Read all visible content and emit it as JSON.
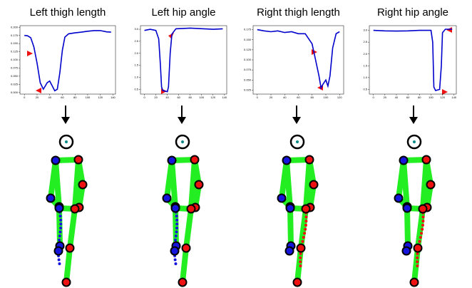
{
  "chart_data": [
    {
      "type": "line",
      "title": "Left thigh length",
      "x": [
        0,
        5,
        10,
        15,
        20,
        25,
        30,
        33,
        36,
        40,
        44,
        48,
        52,
        56,
        60,
        64,
        70,
        80,
        90,
        100,
        110,
        120,
        130,
        137
      ],
      "series": [
        {
          "name": "Left thigh length",
          "color": "#0000cc",
          "values": [
            0.175,
            0.174,
            0.168,
            0.14,
            0.09,
            0.03,
            0.01,
            0.02,
            0.03,
            0.035,
            0.02,
            0.005,
            0.01,
            0.06,
            0.13,
            0.17,
            0.18,
            0.183,
            0.185,
            0.188,
            0.19,
            0.19,
            0.186,
            0.185
          ]
        }
      ],
      "xlim": [
        -7,
        144
      ],
      "xticks": [
        0,
        20,
        40,
        60,
        80,
        100,
        120,
        140
      ],
      "ylim": [
        -0.005,
        0.205
      ],
      "yticks": [
        {
          "value": 0,
          "label": "0.000"
        },
        0.025,
        {
          "value": 0.05,
          "label": "0.050"
        },
        0.075,
        {
          "value": 0.1,
          "label": "0.100"
        },
        0.125,
        {
          "value": 0.15,
          "label": "0.150"
        },
        0.175,
        {
          "value": 0.2,
          "label": "0.200"
        }
      ]
    },
    {
      "type": "line",
      "title": "Left hip angle",
      "x": [
        0,
        10,
        20,
        25,
        28,
        30,
        32,
        40,
        42,
        45,
        48,
        55,
        80,
        120,
        137
      ],
      "series": [
        {
          "name": "Left hip angle",
          "color": "#0000cc",
          "values": [
            2.95,
            3.0,
            2.95,
            2.6,
            1.5,
            0.6,
            0.45,
            0.4,
            0.6,
            2.0,
            2.8,
            3.02,
            3.05,
            3.0,
            3.02
          ]
        }
      ],
      "xlim": [
        -7,
        144
      ],
      "xticks": [
        0,
        20,
        40,
        60,
        80,
        100,
        120,
        140
      ],
      "ylim": [
        0.3,
        3.15
      ],
      "yticks": [
        {
          "value": 0.5,
          "label": "0.5"
        },
        {
          "value": 1,
          "label": "1.0"
        },
        1.5,
        {
          "value": 2,
          "label": "2.0"
        },
        2.5,
        {
          "value": 3,
          "label": "3.0"
        }
      ]
    },
    {
      "type": "line",
      "title": "Right thigh length",
      "x": [
        0,
        10,
        20,
        30,
        40,
        50,
        60,
        70,
        80,
        85,
        90,
        93,
        96,
        100,
        103,
        106,
        110,
        115,
        120
      ],
      "series": [
        {
          "name": "Right thigh length",
          "color": "#0000cc",
          "values": [
            0.175,
            0.172,
            0.17,
            0.172,
            0.168,
            0.17,
            0.165,
            0.165,
            0.14,
            0.1,
            0.06,
            0.03,
            0.04,
            0.05,
            0.035,
            0.06,
            0.13,
            0.165,
            0.17
          ]
        }
      ],
      "xlim": [
        -6,
        126
      ],
      "xticks": [
        0,
        20,
        40,
        60,
        80,
        100,
        120
      ],
      "ylim": [
        0.015,
        0.185
      ],
      "yticks": [
        0.025,
        {
          "value": 0.05,
          "label": "0.050"
        },
        0.075,
        {
          "value": 0.1,
          "label": "0.100"
        },
        0.125,
        {
          "value": 0.15,
          "label": "0.150"
        },
        0.175
      ]
    },
    {
      "type": "line",
      "title": "Right hip angle",
      "x": [
        0,
        20,
        40,
        60,
        80,
        100,
        103,
        105,
        108,
        115,
        118,
        120,
        125,
        137
      ],
      "series": [
        {
          "name": "Right hip angle",
          "color": "#0000cc",
          "values": [
            3.0,
            2.98,
            2.97,
            2.98,
            3.0,
            3.0,
            2.5,
            0.6,
            0.45,
            0.5,
            1.5,
            2.9,
            3.05,
            3.05
          ]
        }
      ],
      "xlim": [
        -7,
        144
      ],
      "xticks": [
        0,
        20,
        40,
        60,
        80,
        100,
        120,
        140
      ],
      "ylim": [
        0.3,
        3.2
      ],
      "yticks": [
        {
          "value": 0.5,
          "label": "0.5"
        },
        {
          "value": 1,
          "label": "1.0"
        },
        1.5,
        {
          "value": 2,
          "label": "2.0"
        },
        2.5,
        {
          "value": 3,
          "label": "3.0"
        }
      ]
    }
  ]
}
